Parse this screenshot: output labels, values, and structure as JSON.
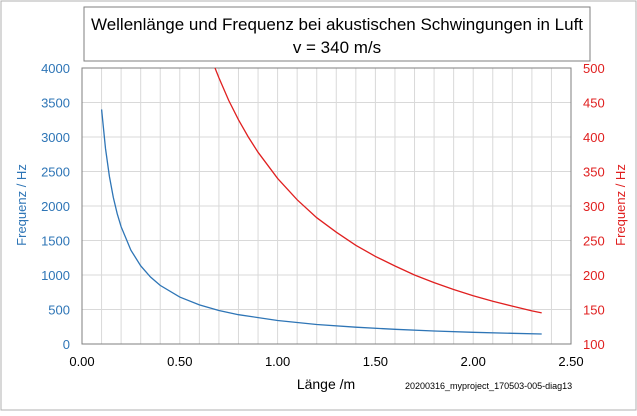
{
  "chart_data": {
    "type": "line",
    "title_line1": "Wellenlänge und Frequenz  bei akustischen Schwingungen in Luft",
    "title_line2": "v = 340 m/s",
    "xlabel": "Länge /m",
    "ylabel_left": "Frequenz / Hz",
    "ylabel_right": "Frequenz / Hz",
    "footnote": "20200316_myproject_170503-005-diag13",
    "xlim": [
      0,
      2.5
    ],
    "ylim_left": [
      0,
      4000
    ],
    "ylim_right": [
      100,
      500
    ],
    "x_ticks": [
      "0.00",
      "0.50",
      "1.00",
      "1.50",
      "2.00",
      "2.50"
    ],
    "y_left_ticks": [
      "0",
      "500",
      "1000",
      "1500",
      "2000",
      "2500",
      "3000",
      "3500",
      "4000"
    ],
    "y_right_ticks": [
      "100",
      "150",
      "200",
      "250",
      "300",
      "350",
      "400",
      "450",
      "500"
    ],
    "grid": true,
    "colors": {
      "left_axis": "#2e75b6",
      "right_axis": "#e02020",
      "blue_series": "#2e75b6",
      "red_series": "#e02020",
      "grid": "#d9d9d9"
    },
    "series": [
      {
        "axis": "left",
        "color": "#2e75b6",
        "x": [
          0.1,
          0.12,
          0.14,
          0.16,
          0.18,
          0.2,
          0.25,
          0.3,
          0.35,
          0.4,
          0.5,
          0.6,
          0.7,
          0.8,
          1.0,
          1.2,
          1.4,
          1.6,
          1.8,
          2.0,
          2.2,
          2.35
        ],
        "y": [
          3400,
          2833,
          2429,
          2125,
          1889,
          1700,
          1360,
          1133,
          971,
          850,
          680,
          567,
          486,
          425,
          340,
          283,
          243,
          213,
          189,
          170,
          155,
          145
        ]
      },
      {
        "axis": "right",
        "color": "#e02020",
        "x": [
          0.68,
          0.7,
          0.75,
          0.8,
          0.85,
          0.9,
          1.0,
          1.1,
          1.2,
          1.3,
          1.4,
          1.5,
          1.6,
          1.7,
          1.8,
          1.9,
          2.0,
          2.1,
          2.2,
          2.3,
          2.35
        ],
        "y": [
          500,
          486,
          453,
          425,
          400,
          378,
          340,
          309,
          283,
          262,
          243,
          227,
          213,
          200,
          189,
          179,
          170,
          162,
          155,
          148,
          145
        ]
      }
    ]
  }
}
